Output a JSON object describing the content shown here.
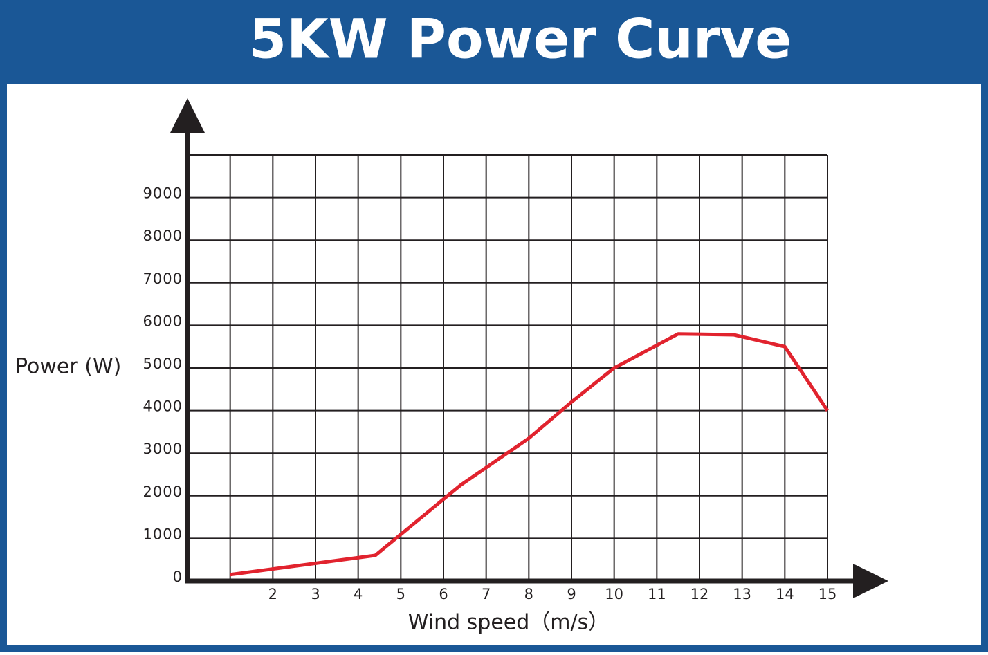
{
  "chart_data": {
    "type": "line",
    "title": "5KW Power Curve",
    "x_label": "Wind speed（m/s）",
    "y_label": "Power (W)",
    "x": [
      1,
      4.4,
      6.4,
      8,
      9,
      10,
      11.5,
      12.8,
      14,
      15
    ],
    "series": [
      {
        "name": "Power",
        "color": "#e1232e",
        "values": [
          150,
          600,
          2250,
          3350,
          4200,
          5000,
          5800,
          5780,
          5500,
          4000
        ]
      }
    ],
    "xlim": [
      0,
      15
    ],
    "xticks": [
      2,
      3,
      4,
      5,
      6,
      7,
      8,
      9,
      10,
      11,
      12,
      13,
      14,
      15
    ],
    "ylim": [
      0,
      10000
    ],
    "yticks": [
      0,
      1000,
      2000,
      3000,
      4000,
      5000,
      6000,
      7000,
      8000,
      9000
    ],
    "grid": true
  }
}
